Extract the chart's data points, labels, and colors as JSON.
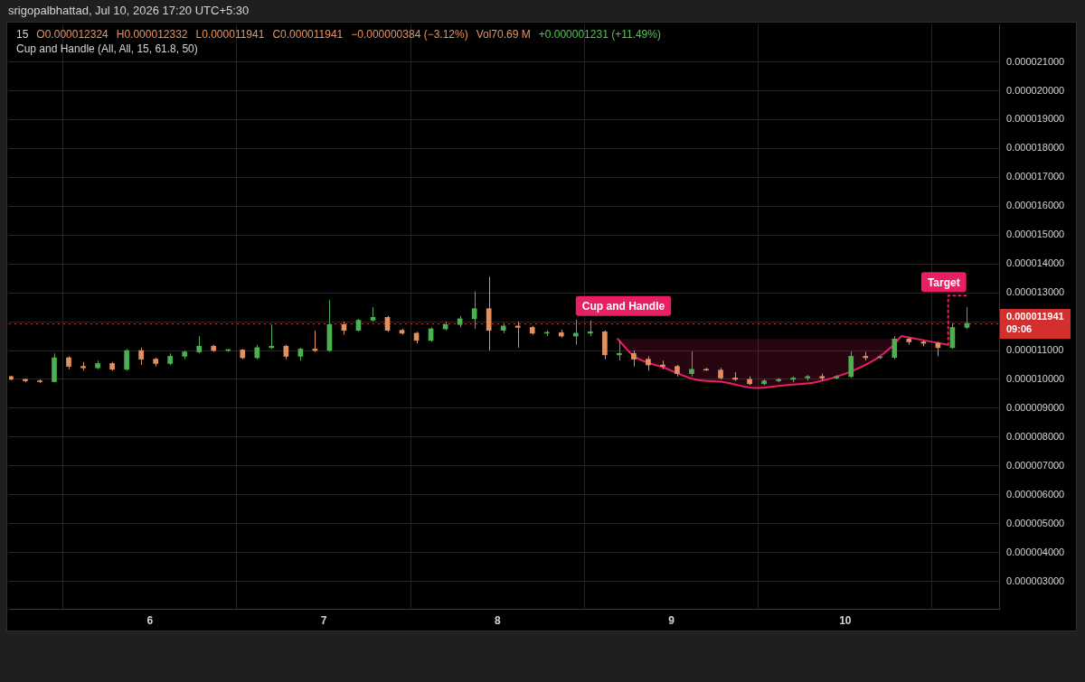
{
  "chart_data": {
    "type": "candlestick",
    "title": "15",
    "subtitle": "Cup and Handle (All, All, 15, 61.8, 50)",
    "annotations": [
      "srigopalbhattad, Jul 10, 2026 17:20 UTC+5:30",
      "O0.000012324",
      "H0.000012332",
      "L0.000011941",
      "C0.000011941",
      "−0.000000384 (−3.12%)",
      "Vol70.69 M",
      "+0.000001231 (+11.49%)",
      {
        "text": "Cup and Handle",
        "x": 8.45,
        "y": 1.207e-05
      },
      {
        "text": "Target",
        "x": 10.696,
        "y": 1.29e-05
      }
    ],
    "x": [
      5.2,
      5.2833,
      5.3667,
      5.45,
      5.5333,
      5.6167,
      5.7,
      5.7833,
      5.8667,
      5.95,
      6.0333,
      6.1167,
      6.2,
      6.2833,
      6.3667,
      6.45,
      6.5333,
      6.6167,
      6.7,
      6.7833,
      6.8667,
      6.95,
      7.0333,
      7.1167,
      7.2,
      7.2833,
      7.3667,
      7.45,
      7.5333,
      7.6167,
      7.7,
      7.7833,
      7.8667,
      7.95,
      8.0333,
      8.1167,
      8.2,
      8.2833,
      8.3667,
      8.45,
      8.5333,
      8.6167,
      8.7,
      8.7833,
      8.8667,
      8.95,
      9.0333,
      9.1167,
      9.2,
      9.2833,
      9.3667,
      9.45,
      9.5333,
      9.6167,
      9.7,
      9.7833,
      9.8667,
      9.95,
      10.0333,
      10.1167,
      10.2,
      10.2833,
      10.3667,
      10.45,
      10.5333,
      10.6167,
      10.7
    ],
    "ohlc": [
      [
        1.01e-05,
        1.012e-05,
        9.98e-06,
        1e-05
      ],
      [
        1e-05,
        1.002e-05,
        9.9e-06,
        9.95e-06
      ],
      [
        9.95e-06,
        1e-05,
        9.88e-06,
        9.92e-06
      ],
      [
        9.92e-06,
        1.09e-05,
        9.9e-06,
        1.075e-05
      ],
      [
        1.075e-05,
        1.08e-05,
        1.035e-05,
        1.045e-05
      ],
      [
        1.045e-05,
        1.06e-05,
        1.03e-05,
        1.04e-05
      ],
      [
        1.04e-05,
        1.065e-05,
        1.035e-05,
        1.055e-05
      ],
      [
        1.055e-05,
        1.06e-05,
        1.03e-05,
        1.035e-05
      ],
      [
        1.035e-05,
        1.105e-05,
        1.03e-05,
        1.1e-05
      ],
      [
        1.1e-05,
        1.11e-05,
        1.05e-05,
        1.07e-05
      ],
      [
        1.07e-05,
        1.075e-05,
        1.045e-05,
        1.055e-05
      ],
      [
        1.055e-05,
        1.09e-05,
        1.05e-05,
        1.08e-05
      ],
      [
        1.08e-05,
        1.1e-05,
        1.07e-05,
        1.095e-05
      ],
      [
        1.095e-05,
        1.15e-05,
        1.09e-05,
        1.115e-05
      ],
      [
        1.115e-05,
        1.12e-05,
        1.095e-05,
        1.1e-05
      ],
      [
        1.1e-05,
        1.105e-05,
        1.095e-05,
        1.102e-05
      ],
      [
        1.102e-05,
        1.105e-05,
        1.07e-05,
        1.075e-05
      ],
      [
        1.075e-05,
        1.12e-05,
        1.07e-05,
        1.11e-05
      ],
      [
        1.11e-05,
        1.19e-05,
        1.105e-05,
        1.115e-05
      ],
      [
        1.115e-05,
        1.12e-05,
        1.07e-05,
        1.08e-05
      ],
      [
        1.08e-05,
        1.11e-05,
        1.065e-05,
        1.105e-05
      ],
      [
        1.105e-05,
        1.17e-05,
        1.095e-05,
        1.1e-05
      ],
      [
        1.1e-05,
        1.275e-05,
        1.095e-05,
        1.19e-05
      ],
      [
        1.19e-05,
        1.2e-05,
        1.155e-05,
        1.17e-05
      ],
      [
        1.17e-05,
        1.21e-05,
        1.165e-05,
        1.205e-05
      ],
      [
        1.205e-05,
        1.25e-05,
        1.2e-05,
        1.215e-05
      ],
      [
        1.215e-05,
        1.22e-05,
        1.165e-05,
        1.17e-05
      ],
      [
        1.17e-05,
        1.175e-05,
        1.155e-05,
        1.16e-05
      ],
      [
        1.16e-05,
        1.165e-05,
        1.125e-05,
        1.135e-05
      ],
      [
        1.135e-05,
        1.18e-05,
        1.13e-05,
        1.175e-05
      ],
      [
        1.175e-05,
        1.2e-05,
        1.17e-05,
        1.19e-05
      ],
      [
        1.19e-05,
        1.22e-05,
        1.18e-05,
        1.21e-05
      ],
      [
        1.21e-05,
        1.305e-05,
        1.175e-05,
        1.245e-05
      ],
      [
        1.245e-05,
        1.355e-05,
        1.1e-05,
        1.17e-05
      ],
      [
        1.17e-05,
        1.195e-05,
        1.16e-05,
        1.185e-05
      ],
      [
        1.185e-05,
        1.2e-05,
        1.11e-05,
        1.18e-05
      ],
      [
        1.18e-05,
        1.185e-05,
        1.155e-05,
        1.16e-05
      ],
      [
        1.16e-05,
        1.17e-05,
        1.15e-05,
        1.162e-05
      ],
      [
        1.162e-05,
        1.172e-05,
        1.145e-05,
        1.15e-05
      ],
      [
        1.15e-05,
        1.207e-05,
        1.12e-05,
        1.16e-05
      ],
      [
        1.16e-05,
        1.205e-05,
        1.15e-05,
        1.165e-05
      ],
      [
        1.165e-05,
        1.17e-05,
        1.07e-05,
        1.085e-05
      ],
      [
        1.085e-05,
        1.135e-05,
        1.065e-05,
        1.09e-05
      ],
      [
        1.09e-05,
        1.1e-05,
        1.045e-05,
        1.07e-05
      ],
      [
        1.07e-05,
        1.08e-05,
        1.03e-05,
        1.05e-05
      ],
      [
        1.05e-05,
        1.065e-05,
        1.035e-05,
        1.045e-05
      ],
      [
        1.045e-05,
        1.05e-05,
        1.01e-05,
        1.02e-05
      ],
      [
        1.02e-05,
        1.097e-05,
        1.01e-05,
        1.035e-05
      ],
      [
        1.035e-05,
        1.04e-05,
        1.03e-05,
        1.032e-05
      ],
      [
        1.032e-05,
        1.04e-05,
        1e-05,
        1.005e-05
      ],
      [
        1.005e-05,
        1.025e-05,
        9.95e-06,
        1e-05
      ],
      [
        1e-05,
        1.01e-05,
        9.8e-06,
        9.85e-06
      ],
      [
        9.85e-06,
        1e-05,
        9.8e-06,
        9.95e-06
      ],
      [
        9.95e-06,
        1.005e-05,
        9.9e-06,
        1e-05
      ],
      [
        1e-05,
        1.01e-05,
        9.9e-06,
        1.005e-05
      ],
      [
        1.005e-05,
        1.015e-05,
        9.95e-06,
        1.01e-05
      ],
      [
        1.01e-05,
        1.02e-05,
        9.95e-06,
        1.005e-05
      ],
      [
        1.005e-05,
        1.015e-05,
        1e-05,
        1.01e-05
      ],
      [
        1.01e-05,
        1.097e-05,
        1.005e-05,
        1.08e-05
      ],
      [
        1.08e-05,
        1.095e-05,
        1.065e-05,
        1.075e-05
      ],
      [
        1.075e-05,
        1.08e-05,
        1.07e-05,
        1.076e-05
      ],
      [
        1.076e-05,
        1.15e-05,
        1.07e-05,
        1.14e-05
      ],
      [
        1.14e-05,
        1.145e-05,
        1.12e-05,
        1.13e-05
      ],
      [
        1.13e-05,
        1.135e-05,
        1.115e-05,
        1.125e-05
      ],
      [
        1.125e-05,
        1.13e-05,
        1.08e-05,
        1.11e-05
      ],
      [
        1.11e-05,
        1.195e-05,
        1.105e-05,
        1.18e-05
      ],
      [
        1.18e-05,
        1.25e-05,
        1.175e-05,
        1.1941e-05
      ]
    ],
    "colors": [
      "#e0915f",
      "#e0915f",
      "#e0915f",
      "#4caf50",
      "#e0915f",
      "#e0915f",
      "#4caf50",
      "#e0915f",
      "#4caf50",
      "#e0915f",
      "#e0915f",
      "#4caf50",
      "#4caf50",
      "#4caf50",
      "#e0915f",
      "#4caf50",
      "#e0915f",
      "#4caf50",
      "#4caf50",
      "#e0915f",
      "#4caf50",
      "#e0915f",
      "#4caf50",
      "#e0915f",
      "#4caf50",
      "#4caf50",
      "#e0915f",
      "#e0915f",
      "#e0915f",
      "#4caf50",
      "#4caf50",
      "#4caf50",
      "#4caf50",
      "#e0915f",
      "#4caf50",
      "#e0915f",
      "#e0915f",
      "#4caf50",
      "#e0915f",
      "#4caf50",
      "#4caf50",
      "#e0915f",
      "#4caf50",
      "#e0915f",
      "#e0915f",
      "#e0915f",
      "#e0915f",
      "#4caf50",
      "#e0915f",
      "#e0915f",
      "#e0915f",
      "#e0915f",
      "#4caf50",
      "#4caf50",
      "#4caf50",
      "#4caf50",
      "#e0915f",
      "#4caf50",
      "#4caf50",
      "#e0915f",
      "#4caf50",
      "#4caf50",
      "#e0915f",
      "#e0915f",
      "#e0915f",
      "#4caf50",
      "#4caf50"
    ],
    "series": [
      {
        "type": "line",
        "color": "#e91e63",
        "x": [
          8.691,
          8.786,
          8.96,
          9.134,
          9.307,
          9.481,
          9.655,
          9.828,
          10.002,
          10.175,
          10.262,
          10.323
        ],
        "values": [
          1.14e-05,
          1.08e-05,
          1.04e-05,
          1e-05,
          9.9e-06,
          9.7e-06,
          9.8e-06,
          9.9e-06,
          1.02e-05,
          1.07e-05,
          1.11e-05,
          1.15e-05
        ],
        "lower": [
          1.14e-05,
          1.08e-05,
          1.04e-05,
          1e-05,
          9.9e-06,
          9.7e-06,
          9.8e-06,
          9.9e-06,
          1.02e-05,
          1.07e-05,
          1.11e-05,
          1.15e-05
        ],
        "upper": [
          1.14e-05,
          1.14e-05,
          1.14e-05,
          1.14e-05,
          1.14e-05,
          1.14e-05,
          1.14e-05,
          1.14e-05,
          1.14e-05,
          1.14e-05,
          1.14e-05,
          1.15e-05
        ]
      },
      {
        "type": "line",
        "color": "#e91e63",
        "x": [
          10.323,
          10.592
        ],
        "values": [
          1.15e-05,
          1.12e-05
        ]
      },
      {
        "type": "line",
        "color": "#e91e63",
        "line_style": "dotted",
        "x": [
          10.592,
          10.592,
          10.696
        ],
        "values": [
          1.12e-05,
          1.29e-05,
          1.29e-05
        ]
      }
    ],
    "xlim": [
      5.19,
      10.885
    ],
    "xticks": [
      6,
      7,
      8,
      9,
      10
    ],
    "ylim": [
      2.05e-06,
      2.23e-05
    ],
    "yticks": [
      {
        "value": 3e-06,
        "label": "0.000003000"
      },
      {
        "value": 4e-06,
        "label": "0.000004000"
      },
      {
        "value": 5e-06,
        "label": "0.000005000"
      },
      {
        "value": 6e-06,
        "label": "0.000006000"
      },
      {
        "value": 7e-06,
        "label": "0.000007000"
      },
      {
        "value": 8e-06,
        "label": "0.000008000"
      },
      {
        "value": 9e-06,
        "label": "0.000009000"
      },
      {
        "value": 1e-05,
        "label": "0.000010000"
      },
      {
        "value": 1.1e-05,
        "label": "0.000011000"
      },
      {
        "value": 1.2e-05,
        "label": null
      },
      {
        "value": 1.3e-05,
        "label": "0.000013000"
      },
      {
        "value": 1.4e-05,
        "label": "0.000014000"
      },
      {
        "value": 1.5e-05,
        "label": "0.000015000"
      },
      {
        "value": 1.6e-05,
        "label": "0.000016000"
      },
      {
        "value": 1.7e-05,
        "label": "0.000017000"
      },
      {
        "value": 1.8e-05,
        "label": "0.000018000"
      },
      {
        "value": 1.9e-05,
        "label": "0.000019000"
      },
      {
        "value": 2e-05,
        "label": "0.000020000"
      },
      {
        "value": 2.1e-05,
        "label": "0.000021000"
      }
    ],
    "ref_lines": [
      {
        "axis": "y",
        "value": 1.1941e-05,
        "label": "0.000011941\n09:06",
        "color": "#d32f2f",
        "line_style": "dotted"
      }
    ],
    "grid": true
  }
}
